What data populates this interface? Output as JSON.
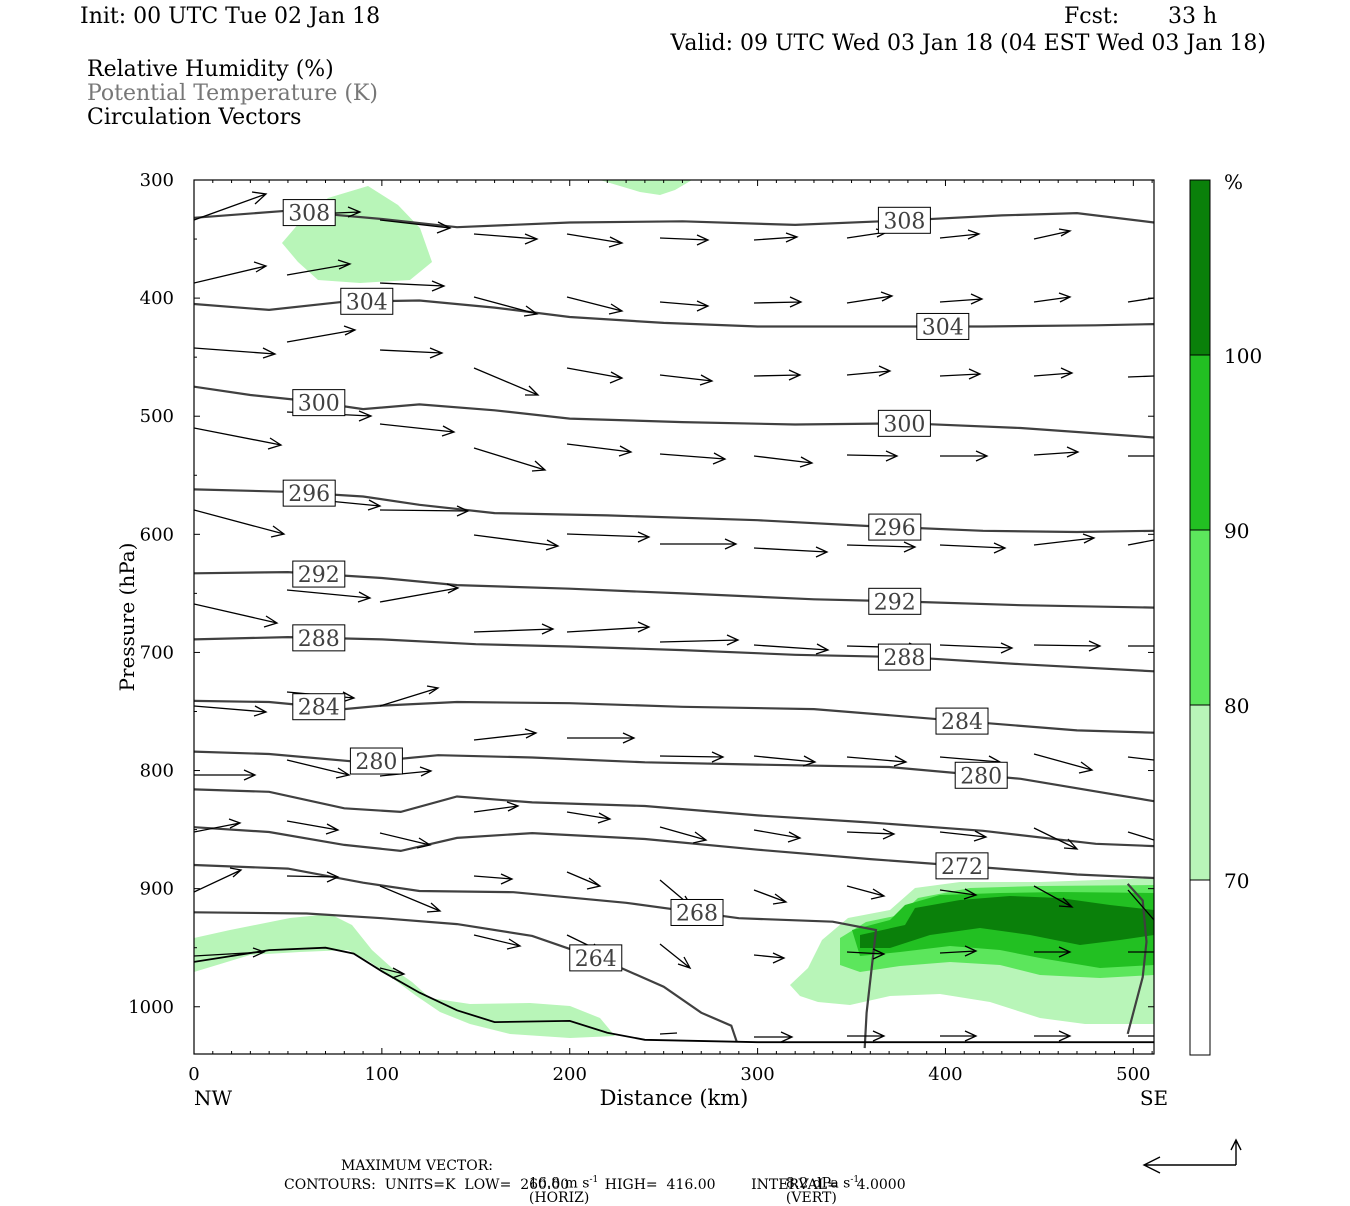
{
  "header": {
    "init": "Init: 00 UTC Tue 02 Jan 18",
    "fcst_label": "Fcst:",
    "fcst_value": "33 h",
    "valid": "Valid: 09 UTC Wed 03 Jan 18 (04 EST Wed 03 Jan 18)"
  },
  "legend": {
    "rh": "Relative Humidity (%)",
    "theta": "Potential Temperature (K)",
    "vectors": "Circulation Vectors"
  },
  "footer": {
    "max_vector_label": "MAXIMUM VECTOR:",
    "horiz_value": "16.8 m s",
    "horiz_unit": "(HORIZ)",
    "vert_value": "8.2 dPa s",
    "vert_unit": "(VERT)",
    "exponent": "-1",
    "contours": "CONTOURS:  UNITS=K  LOW=  260.00        HIGH=  416.00        INTERVAL=    4.0000"
  },
  "colors": {
    "rh70": "#b8f5b8",
    "rh80": "#5ce65c",
    "rh90": "#22c022",
    "rh100": "#0a800a",
    "theta_line": "#404040",
    "axis": "#000000"
  },
  "chart_data": {
    "type": "cross-section",
    "xlabel": "Distance (km)",
    "ylabel": "Pressure (hPa)",
    "x_range": [
      0,
      511
    ],
    "y_range": [
      300,
      1040
    ],
    "x_ticks": [
      0,
      100,
      200,
      300,
      400,
      500
    ],
    "x_tick_labels": [
      "0",
      "100",
      "200",
      "300",
      "400",
      "500"
    ],
    "y_ticks": [
      300,
      400,
      500,
      600,
      700,
      800,
      900,
      1000
    ],
    "y_tick_labels": [
      "300",
      "400",
      "500",
      "600",
      "700",
      "800",
      "900",
      "1000"
    ],
    "x_end_labels": {
      "left": "NW",
      "right": "SE"
    },
    "colorbar": {
      "unit": "%",
      "levels": [
        70,
        80,
        90,
        100
      ],
      "level_labels": [
        "70",
        "80",
        "90",
        "100"
      ]
    },
    "theta_contours": [
      {
        "theta": 308,
        "label": "308",
        "points": [
          [
            0,
            332
          ],
          [
            50,
            326
          ],
          [
            100,
            333
          ],
          [
            140,
            340
          ],
          [
            200,
            336
          ],
          [
            260,
            335
          ],
          [
            320,
            338
          ],
          [
            380,
            334
          ],
          [
            430,
            330
          ],
          [
            470,
            328
          ],
          [
            511,
            336
          ]
        ]
      },
      {
        "theta": 304,
        "label": "304",
        "points": [
          [
            0,
            405
          ],
          [
            40,
            410
          ],
          [
            80,
            403
          ],
          [
            120,
            402
          ],
          [
            160,
            408
          ],
          [
            200,
            416
          ],
          [
            250,
            421
          ],
          [
            300,
            424
          ],
          [
            360,
            424
          ],
          [
            420,
            424
          ],
          [
            480,
            423
          ],
          [
            511,
            422
          ]
        ]
      },
      {
        "theta": 300,
        "label": "300",
        "points": [
          [
            0,
            475
          ],
          [
            30,
            482
          ],
          [
            60,
            487
          ],
          [
            90,
            494
          ],
          [
            120,
            490
          ],
          [
            160,
            495
          ],
          [
            200,
            502
          ],
          [
            260,
            505
          ],
          [
            320,
            507
          ],
          [
            380,
            506
          ],
          [
            440,
            510
          ],
          [
            511,
            518
          ]
        ]
      },
      {
        "theta": 296,
        "label": "296",
        "points": [
          [
            0,
            562
          ],
          [
            50,
            564
          ],
          [
            90,
            568
          ],
          [
            120,
            575
          ],
          [
            160,
            582
          ],
          [
            220,
            584
          ],
          [
            300,
            588
          ],
          [
            360,
            593
          ],
          [
            420,
            597
          ],
          [
            470,
            598
          ],
          [
            511,
            597
          ]
        ]
      },
      {
        "theta": 292,
        "label": "292",
        "points": [
          [
            0,
            633
          ],
          [
            50,
            632
          ],
          [
            100,
            637
          ],
          [
            140,
            643
          ],
          [
            200,
            646
          ],
          [
            260,
            650
          ],
          [
            330,
            655
          ],
          [
            380,
            657
          ],
          [
            440,
            660
          ],
          [
            511,
            662
          ]
        ]
      },
      {
        "theta": 288,
        "label": "288",
        "points": [
          [
            0,
            689
          ],
          [
            50,
            687
          ],
          [
            100,
            689
          ],
          [
            150,
            693
          ],
          [
            200,
            695
          ],
          [
            260,
            698
          ],
          [
            320,
            702
          ],
          [
            380,
            704
          ],
          [
            440,
            710
          ],
          [
            511,
            716
          ]
        ]
      },
      {
        "theta": 284,
        "label": "284",
        "points": [
          [
            0,
            741
          ],
          [
            40,
            742
          ],
          [
            80,
            748
          ],
          [
            100,
            745
          ],
          [
            140,
            742
          ],
          [
            200,
            743
          ],
          [
            260,
            746
          ],
          [
            330,
            748
          ],
          [
            400,
            757
          ],
          [
            470,
            766
          ],
          [
            511,
            768
          ]
        ]
      },
      {
        "theta": 280,
        "label": "280",
        "points": [
          [
            0,
            784
          ],
          [
            40,
            786
          ],
          [
            90,
            793
          ],
          [
            130,
            787
          ],
          [
            180,
            789
          ],
          [
            240,
            793
          ],
          [
            300,
            795
          ],
          [
            370,
            797
          ],
          [
            440,
            807
          ],
          [
            511,
            826
          ]
        ]
      },
      {
        "theta": 276,
        "label": "",
        "points": [
          [
            0,
            816
          ],
          [
            40,
            818
          ],
          [
            80,
            832
          ],
          [
            110,
            835
          ],
          [
            140,
            822
          ],
          [
            180,
            827
          ],
          [
            240,
            830
          ],
          [
            300,
            838
          ],
          [
            360,
            844
          ],
          [
            420,
            851
          ],
          [
            480,
            862
          ],
          [
            511,
            864
          ]
        ]
      },
      {
        "theta": 272,
        "label": "272",
        "points": [
          [
            0,
            848
          ],
          [
            40,
            852
          ],
          [
            80,
            863
          ],
          [
            110,
            868
          ],
          [
            140,
            857
          ],
          [
            180,
            853
          ],
          [
            240,
            858
          ],
          [
            300,
            867
          ],
          [
            360,
            875
          ],
          [
            420,
            882
          ],
          [
            470,
            888
          ],
          [
            511,
            891
          ]
        ]
      },
      {
        "theta": 268,
        "label": "268",
        "points": [
          [
            0,
            880
          ],
          [
            50,
            883
          ],
          [
            90,
            895
          ],
          [
            120,
            902
          ],
          [
            170,
            903
          ],
          [
            230,
            912
          ],
          [
            290,
            925
          ],
          [
            340,
            928
          ],
          [
            363,
            935
          ],
          [
            358,
            1005
          ],
          [
            357,
            1035
          ]
        ]
      },
      {
        "theta": 264,
        "label": "264",
        "points": [
          [
            0,
            920
          ],
          [
            60,
            921
          ],
          [
            100,
            925
          ],
          [
            140,
            930
          ],
          [
            180,
            940
          ],
          [
            220,
            962
          ],
          [
            250,
            983
          ],
          [
            270,
            1005
          ],
          [
            286,
            1016
          ],
          [
            289,
            1030
          ]
        ]
      },
      {
        "theta": 268,
        "label": "",
        "points": [
          [
            497,
            896
          ],
          [
            505,
            910
          ],
          [
            507,
            945
          ],
          [
            505,
            975
          ],
          [
            497,
            1023
          ]
        ]
      }
    ],
    "terrain": [
      [
        0,
        962
      ],
      [
        20,
        957
      ],
      [
        40,
        952
      ],
      [
        70,
        950
      ],
      [
        85,
        955
      ],
      [
        100,
        970
      ],
      [
        120,
        988
      ],
      [
        140,
        1003
      ],
      [
        160,
        1013
      ],
      [
        200,
        1012
      ],
      [
        220,
        1022
      ],
      [
        240,
        1028
      ],
      [
        300,
        1030
      ],
      [
        511,
        1030
      ]
    ],
    "vector_scale": {
      "horizontal": "16.8 m s-1",
      "vertical": "8.2 dPa s-1"
    }
  }
}
